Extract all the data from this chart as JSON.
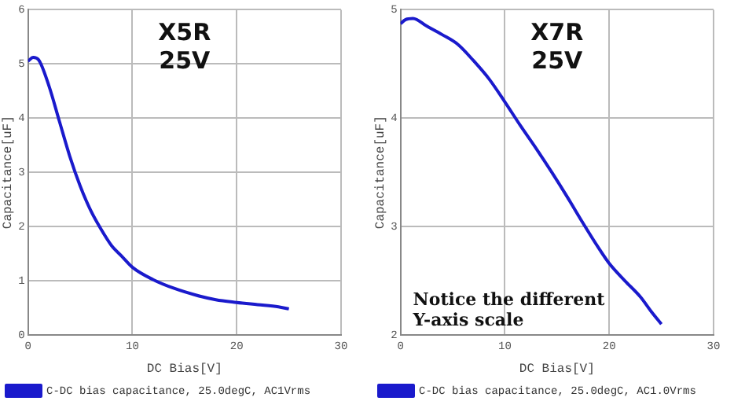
{
  "chart_data": [
    {
      "type": "line",
      "title": "X5R\n25V",
      "xlabel": "DC Bias[V]",
      "ylabel": "Capacitance[uF]",
      "xlim": [
        0,
        30
      ],
      "xticks": [
        0,
        10,
        20,
        30
      ],
      "ylim": [
        0,
        6
      ],
      "yticks": [
        0,
        1,
        2,
        3,
        4,
        5,
        6
      ],
      "grid": true,
      "legend": "bottom",
      "marker": "none",
      "series": [
        {
          "name": "C-DC bias capacitance, 25.0degC, AC1Vrms",
          "color": "#1a1acc",
          "x": [
            0,
            0.5,
            1,
            2,
            3,
            4,
            5,
            6,
            7,
            8,
            9,
            10,
            12,
            14,
            16,
            18,
            20,
            22,
            24,
            25
          ],
          "values": [
            5.05,
            5.12,
            5.08,
            4.6,
            3.95,
            3.3,
            2.75,
            2.3,
            1.95,
            1.65,
            1.45,
            1.25,
            1.02,
            0.86,
            0.74,
            0.65,
            0.6,
            0.56,
            0.52,
            0.48
          ]
        }
      ]
    },
    {
      "type": "line",
      "title": "X7R\n25V",
      "xlabel": "DC Bias[V]",
      "ylabel": "Capacitance[uF]",
      "xlim": [
        0,
        30
      ],
      "xticks": [
        0,
        10,
        20,
        30
      ],
      "ylim": [
        2,
        5
      ],
      "yticks": [
        2,
        3,
        4,
        5
      ],
      "grid": true,
      "legend": "bottom",
      "marker": "none",
      "annotations": [
        "Notice the different Y-axis scale"
      ],
      "series": [
        {
          "name": "C-DC bias capacitance, 25.0degC, AC1.0Vrms",
          "color": "#1a1acc",
          "x": [
            0,
            0.5,
            1.2,
            2.5,
            4,
            5.5,
            7,
            8.5,
            10,
            11.5,
            13,
            14.5,
            16,
            17.5,
            19,
            20,
            21.5,
            23,
            24,
            25
          ],
          "values": [
            4.87,
            4.91,
            4.92,
            4.85,
            4.77,
            4.68,
            4.53,
            4.36,
            4.15,
            3.93,
            3.72,
            3.5,
            3.27,
            3.03,
            2.8,
            2.66,
            2.5,
            2.35,
            2.22,
            2.1
          ]
        }
      ]
    }
  ]
}
